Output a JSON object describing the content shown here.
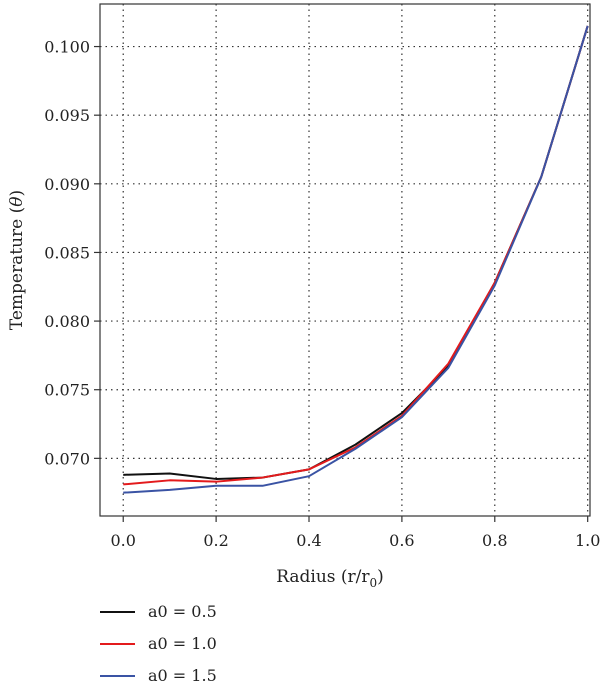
{
  "chart_data": {
    "type": "line",
    "title": "",
    "xlabel": "Radius (r/r",
    "xlabel_sub": "0",
    "xlabel_close": ")",
    "ylabel": "Temperature (θ)",
    "xlim": [
      -0.05,
      1.005
    ],
    "ylim": [
      0.0658,
      0.1031
    ],
    "xticks": [
      0.0,
      0.2,
      0.4,
      0.6,
      0.8,
      1.0
    ],
    "xtick_labels": [
      "0.0",
      "0.2",
      "0.4",
      "0.6",
      "0.8",
      "1.0"
    ],
    "yticks": [
      0.07,
      0.075,
      0.08,
      0.085,
      0.09,
      0.095,
      0.1
    ],
    "ytick_labels": [
      "0.070",
      "0.075",
      "0.080",
      "0.085",
      "0.090",
      "0.095",
      "0.100"
    ],
    "grid": true,
    "legend_position": "below",
    "x": [
      0.0,
      0.1,
      0.2,
      0.3,
      0.4,
      0.5,
      0.6,
      0.7,
      0.8,
      0.9,
      1.0
    ],
    "series": [
      {
        "name": "a0 = 0.5",
        "color": "#111111",
        "values": [
          0.0688,
          0.0689,
          0.0685,
          0.0686,
          0.0692,
          0.071,
          0.0733,
          0.0767,
          0.0828,
          0.0905,
          0.1015
        ]
      },
      {
        "name": "a0 = 1.0",
        "color": "#e31a1c",
        "values": [
          0.0681,
          0.0684,
          0.0683,
          0.0686,
          0.0692,
          0.0708,
          0.0731,
          0.0769,
          0.0828,
          0.0905,
          0.1015
        ]
      },
      {
        "name": "a0 = 1.5",
        "color": "#3a53a4",
        "values": [
          0.0675,
          0.0677,
          0.068,
          0.068,
          0.0687,
          0.0707,
          0.073,
          0.0766,
          0.0826,
          0.0905,
          0.1015
        ]
      }
    ]
  }
}
